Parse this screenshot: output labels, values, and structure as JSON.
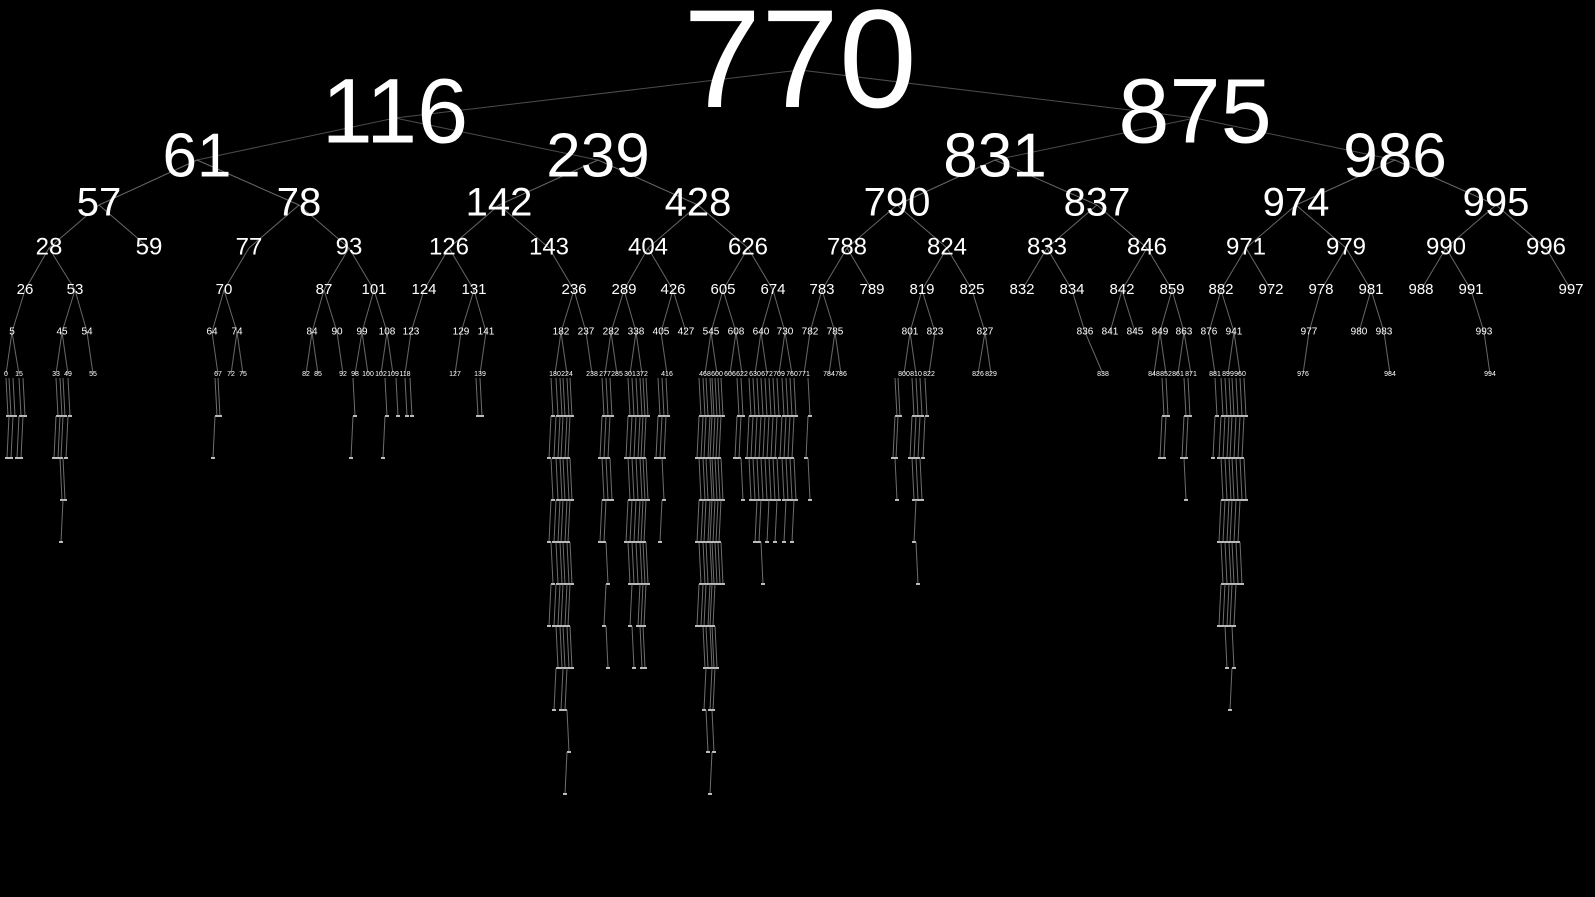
{
  "tree": {
    "root": "770",
    "levels": [
      [
        "770"
      ],
      [
        "116",
        "875"
      ],
      [
        "61",
        "239",
        "831",
        "986"
      ],
      [
        "57",
        "78",
        "142",
        "428",
        "790",
        "837",
        "974",
        "995"
      ],
      [
        "28",
        "59",
        "77",
        "93",
        "126",
        "143",
        "404",
        "626",
        "788",
        "824",
        "833",
        "846",
        "971",
        "979",
        "990",
        "996"
      ],
      [
        "26",
        "53",
        "70",
        "87",
        "101",
        "124",
        "131",
        "236",
        "289",
        "426",
        "605",
        "674",
        "783",
        "789",
        "819",
        "825",
        "832",
        "834",
        "842",
        "859",
        "882",
        "972",
        "978",
        "981",
        "988",
        "991",
        "997"
      ],
      [
        "5",
        "45",
        "54",
        "64",
        "74",
        "84",
        "90",
        "99",
        "108",
        "123",
        "129",
        "141",
        "182",
        "237",
        "282",
        "338",
        "405",
        "427",
        "545",
        "608",
        "640",
        "730",
        "782",
        "785",
        "801",
        "823",
        "827",
        "836",
        "841",
        "845",
        "849",
        "863",
        "876",
        "941",
        "977",
        "980",
        "983",
        "993"
      ],
      [
        "0",
        "15",
        "33",
        "49",
        "55",
        "67",
        "72",
        "75",
        "82",
        "85",
        "92",
        "98",
        "100",
        "102",
        "109",
        "118",
        "127",
        "139",
        "180",
        "224",
        "238",
        "277",
        "285",
        "301",
        "372",
        "416",
        "468",
        "600",
        "606",
        "622",
        "630",
        "672",
        "709",
        "760",
        "771",
        "784",
        "786",
        "800",
        "810",
        "822",
        "826",
        "829",
        "838",
        "848",
        "852",
        "861",
        "871",
        "881",
        "899",
        "960",
        "976",
        "984",
        "994"
      ]
    ],
    "edges": [
      [
        "770",
        "116"
      ],
      [
        "770",
        "875"
      ],
      [
        "116",
        "61"
      ],
      [
        "116",
        "239"
      ],
      [
        "875",
        "831"
      ],
      [
        "875",
        "986"
      ],
      [
        "61",
        "57"
      ],
      [
        "61",
        "78"
      ],
      [
        "239",
        "142"
      ],
      [
        "239",
        "428"
      ],
      [
        "831",
        "790"
      ],
      [
        "831",
        "837"
      ],
      [
        "986",
        "974"
      ],
      [
        "986",
        "995"
      ],
      [
        "57",
        "28"
      ],
      [
        "57",
        "59"
      ],
      [
        "78",
        "77"
      ],
      [
        "78",
        "93"
      ],
      [
        "142",
        "126"
      ],
      [
        "142",
        "143"
      ],
      [
        "428",
        "404"
      ],
      [
        "428",
        "626"
      ],
      [
        "790",
        "788"
      ],
      [
        "790",
        "824"
      ],
      [
        "837",
        "833"
      ],
      [
        "837",
        "846"
      ],
      [
        "974",
        "971"
      ],
      [
        "974",
        "979"
      ],
      [
        "995",
        "990"
      ],
      [
        "995",
        "996"
      ],
      [
        "28",
        "26"
      ],
      [
        "28",
        "53"
      ],
      [
        "77",
        "70"
      ],
      [
        "93",
        "87"
      ],
      [
        "93",
        "101"
      ],
      [
        "126",
        "124"
      ],
      [
        "126",
        "131"
      ],
      [
        "143",
        "236"
      ],
      [
        "404",
        "289"
      ],
      [
        "404",
        "426"
      ],
      [
        "626",
        "605"
      ],
      [
        "626",
        "674"
      ],
      [
        "788",
        "783"
      ],
      [
        "788",
        "789"
      ],
      [
        "824",
        "819"
      ],
      [
        "824",
        "825"
      ],
      [
        "833",
        "832"
      ],
      [
        "833",
        "834"
      ],
      [
        "846",
        "842"
      ],
      [
        "846",
        "859"
      ],
      [
        "971",
        "882"
      ],
      [
        "971",
        "972"
      ],
      [
        "979",
        "978"
      ],
      [
        "979",
        "981"
      ],
      [
        "990",
        "988"
      ],
      [
        "990",
        "991"
      ],
      [
        "996",
        "997"
      ],
      [
        "26",
        "5"
      ],
      [
        "53",
        "45"
      ],
      [
        "53",
        "54"
      ],
      [
        "70",
        "64"
      ],
      [
        "70",
        "74"
      ],
      [
        "87",
        "84"
      ],
      [
        "87",
        "90"
      ],
      [
        "101",
        "99"
      ],
      [
        "101",
        "108"
      ],
      [
        "124",
        "123"
      ],
      [
        "131",
        "129"
      ],
      [
        "131",
        "141"
      ],
      [
        "236",
        "182"
      ],
      [
        "236",
        "237"
      ],
      [
        "289",
        "282"
      ],
      [
        "289",
        "338"
      ],
      [
        "426",
        "405"
      ],
      [
        "426",
        "427"
      ],
      [
        "605",
        "545"
      ],
      [
        "605",
        "608"
      ],
      [
        "674",
        "640"
      ],
      [
        "674",
        "730"
      ],
      [
        "783",
        "782"
      ],
      [
        "783",
        "785"
      ],
      [
        "819",
        "801"
      ],
      [
        "819",
        "823"
      ],
      [
        "825",
        "827"
      ],
      [
        "834",
        "836"
      ],
      [
        "842",
        "841"
      ],
      [
        "842",
        "845"
      ],
      [
        "859",
        "849"
      ],
      [
        "859",
        "863"
      ],
      [
        "882",
        "876"
      ],
      [
        "882",
        "941"
      ],
      [
        "978",
        "977"
      ],
      [
        "981",
        "980"
      ],
      [
        "981",
        "983"
      ],
      [
        "991",
        "993"
      ],
      [
        "5",
        "0"
      ],
      [
        "5",
        "15"
      ],
      [
        "45",
        "33"
      ],
      [
        "45",
        "49"
      ],
      [
        "54",
        "55"
      ],
      [
        "64",
        "67"
      ],
      [
        "74",
        "72"
      ],
      [
        "74",
        "75"
      ],
      [
        "84",
        "82"
      ],
      [
        "84",
        "85"
      ],
      [
        "90",
        "92"
      ],
      [
        "99",
        "98"
      ],
      [
        "99",
        "100"
      ],
      [
        "108",
        "102"
      ],
      [
        "108",
        "109"
      ],
      [
        "123",
        "118"
      ],
      [
        "129",
        "127"
      ],
      [
        "141",
        "139"
      ],
      [
        "182",
        "180"
      ],
      [
        "182",
        "224"
      ],
      [
        "237",
        "238"
      ],
      [
        "282",
        "277"
      ],
      [
        "282",
        "285"
      ],
      [
        "338",
        "301"
      ],
      [
        "338",
        "372"
      ],
      [
        "405",
        "416"
      ],
      [
        "545",
        "468"
      ],
      [
        "545",
        "600"
      ],
      [
        "608",
        "606"
      ],
      [
        "608",
        "622"
      ],
      [
        "640",
        "630"
      ],
      [
        "640",
        "672"
      ],
      [
        "730",
        "709"
      ],
      [
        "730",
        "760"
      ],
      [
        "782",
        "771"
      ],
      [
        "785",
        "784"
      ],
      [
        "785",
        "786"
      ],
      [
        "801",
        "800"
      ],
      [
        "801",
        "810"
      ],
      [
        "823",
        "822"
      ],
      [
        "827",
        "826"
      ],
      [
        "827",
        "829"
      ],
      [
        "836",
        "838"
      ],
      [
        "849",
        "848"
      ],
      [
        "849",
        "852"
      ],
      [
        "863",
        "861"
      ],
      [
        "863",
        "871"
      ],
      [
        "876",
        "881"
      ],
      [
        "941",
        "899"
      ],
      [
        "941",
        "960"
      ],
      [
        "977",
        "976"
      ],
      [
        "983",
        "984"
      ],
      [
        "993",
        "994"
      ]
    ]
  }
}
